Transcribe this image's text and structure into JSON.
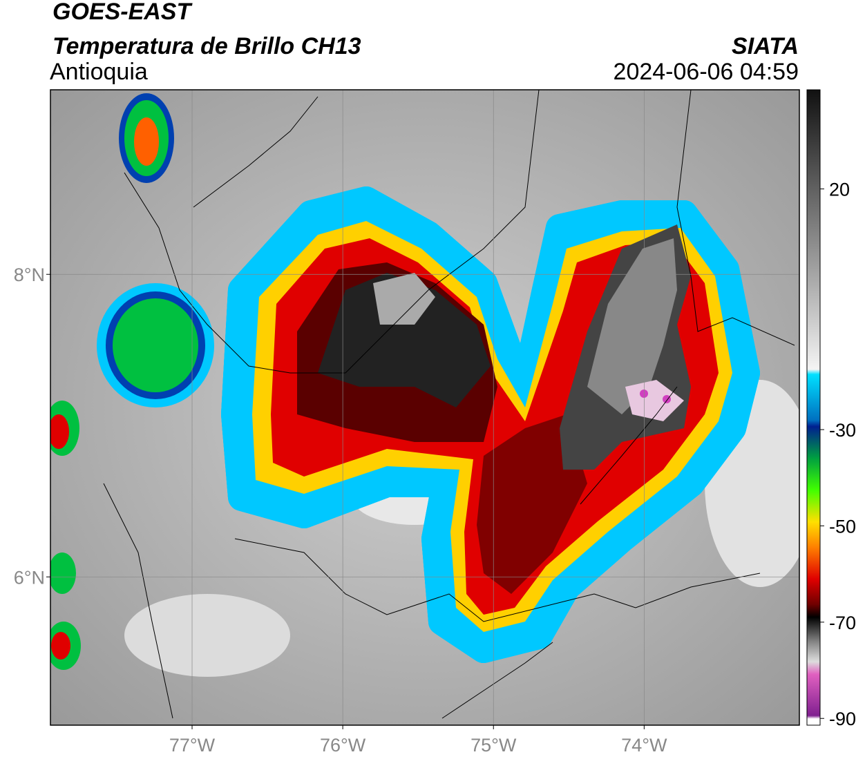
{
  "header": {
    "satellite": "GOES-EAST",
    "product": "Temperatura de Brillo CH13",
    "region": "Antioquia",
    "source": "SIATA",
    "datetime": "2024-06-06 04:59"
  },
  "map": {
    "lon_range": [
      -77.94,
      -72.97
    ],
    "lat_range": [
      5.02,
      9.22
    ],
    "lon_ticks": [
      {
        "value": -77,
        "label": "77°W"
      },
      {
        "value": -76,
        "label": "76°W"
      },
      {
        "value": -75,
        "label": "75°W"
      },
      {
        "value": -74,
        "label": "74°W"
      }
    ],
    "lat_ticks": [
      {
        "value": 8,
        "label": "8°N"
      },
      {
        "value": 6,
        "label": "6°N"
      }
    ]
  },
  "colorbar": {
    "range": [
      -91.4,
      40.6
    ],
    "ticks": [
      20,
      -30,
      -50,
      -70,
      -90
    ]
  }
}
